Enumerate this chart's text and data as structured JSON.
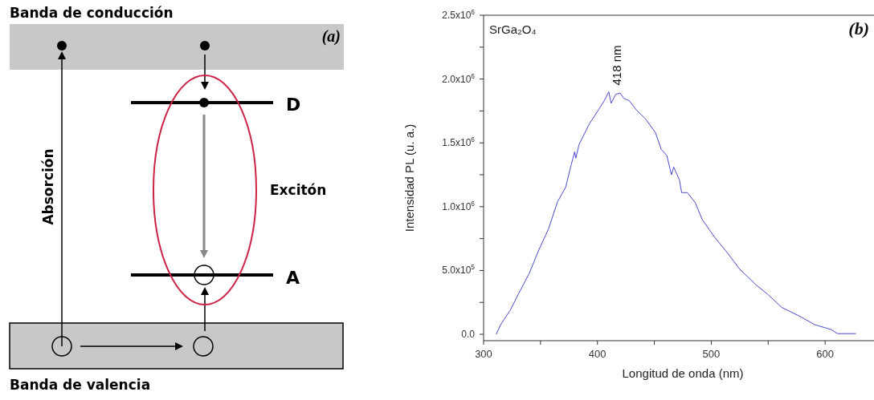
{
  "chart_data": [
    {
      "type": "other",
      "annotations": [
        "Banda de conducción",
        "(a)",
        "D",
        "Excitón",
        "Absorción",
        "A",
        "Banda de valencia"
      ]
    },
    {
      "type": "line",
      "xlabel": "Longitud de onda (nm)",
      "ylabel": "Intensidad PL (u. a.)",
      "annotations": [
        "SrGa₂O₄",
        "(b)",
        {
          "text": "418 nm",
          "x": 418,
          "y": 1900000
        }
      ],
      "xlim": [
        300,
        650
      ],
      "xticks": [
        300,
        {
          "value": 350,
          "label": null
        },
        400,
        {
          "value": 450,
          "label": null
        },
        500,
        {
          "value": 550,
          "label": null
        },
        600
      ],
      "ylim": [
        -50000,
        2500000
      ],
      "yticks": [
        {
          "value": 0,
          "label": "0.0"
        },
        {
          "value": 250000,
          "label": null
        },
        {
          "value": 500000,
          "label": "5.0x10$^{5}$"
        },
        {
          "value": 750000,
          "label": null
        },
        {
          "value": 1000000,
          "label": "1.0x10$^{6}$"
        },
        {
          "value": 1250000,
          "label": null
        },
        {
          "value": 1500000,
          "label": "1.5x10$^{6}$"
        },
        {
          "value": 1750000,
          "label": null
        },
        {
          "value": 2000000,
          "label": "2.0x10$^{6}$"
        },
        {
          "value": 2250000,
          "label": null
        },
        {
          "value": 2500000,
          "label": "2.5x10$^{6}$"
        }
      ],
      "marker": "none",
      "line_style": "solid",
      "series": [
        {
          "color": "#4a4ad0",
          "x": [
            311,
            315,
            323.5,
            332,
            340,
            348,
            357,
            365,
            372,
            377,
            380,
            381,
            384,
            393,
            401,
            406,
            410,
            412,
            416,
            420,
            423,
            428,
            434,
            442,
            451,
            456,
            461,
            465,
            467,
            472,
            474,
            479,
            486,
            492,
            503,
            514,
            525,
            539,
            550,
            562,
            578,
            591,
            605,
            611,
            627
          ],
          "values": [
            0,
            75000,
            190000,
            340000,
            475000,
            650000,
            825000,
            1040000,
            1150000,
            1330000,
            1430000,
            1380000,
            1490000,
            1650000,
            1760000,
            1830000,
            1900000,
            1810000,
            1880000,
            1890000,
            1850000,
            1830000,
            1760000,
            1690000,
            1580000,
            1450000,
            1400000,
            1250000,
            1310000,
            1210000,
            1110000,
            1110000,
            1030000,
            900000,
            760000,
            640000,
            510000,
            390000,
            310000,
            210000,
            140000,
            75000,
            38000,
            5000,
            5000
          ]
        }
      ]
    }
  ]
}
